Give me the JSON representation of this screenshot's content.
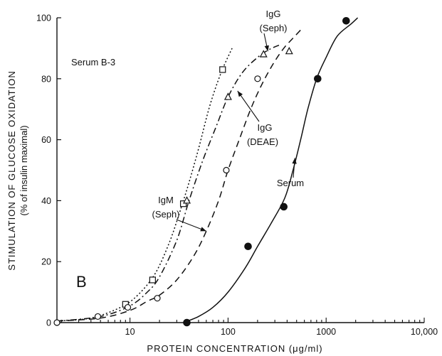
{
  "chart_data": {
    "type": "scatter",
    "title": "",
    "xlabel": "PROTEIN CONCENTRATION (μg/ml)",
    "ylabel": "STIMULATION OF GLUCOSE OXIDATION",
    "ylabel_sub": "(% of insulin maximal)",
    "x_scale": "log",
    "xlim": [
      1.8,
      10000
    ],
    "ylim": [
      0,
      100
    ],
    "x_ticks": [
      10,
      100,
      1000,
      10000
    ],
    "x_tick_labels": [
      "10",
      "100",
      "1000",
      "10,000"
    ],
    "y_ticks": [
      0,
      20,
      40,
      60,
      80,
      100
    ],
    "y_tick_labels": [
      "0",
      "20",
      "40",
      "60",
      "80",
      "100"
    ],
    "panel_label": "B",
    "inset_label": "Serum B-3",
    "series": [
      {
        "name": "IgM (Seph)",
        "marker": "square",
        "line_style": "dotted",
        "points": [
          [
            9,
            6
          ],
          [
            17,
            14
          ],
          [
            35,
            39
          ],
          [
            88,
            83
          ]
        ],
        "curve": [
          [
            1.8,
            0.5
          ],
          [
            4,
            1.5
          ],
          [
            8,
            5
          ],
          [
            12,
            9
          ],
          [
            18,
            16
          ],
          [
            25,
            26
          ],
          [
            32,
            36
          ],
          [
            40,
            46
          ],
          [
            50,
            57
          ],
          [
            65,
            71
          ],
          [
            85,
            82
          ],
          [
            110,
            90
          ]
        ]
      },
      {
        "name": "IgG (Seph)",
        "marker": "triangle",
        "line_style": "dash-dot",
        "points": [
          [
            38,
            40
          ],
          [
            100,
            74
          ],
          [
            230,
            88
          ],
          [
            420,
            89
          ]
        ],
        "curve": [
          [
            1.8,
            0.5
          ],
          [
            5,
            2
          ],
          [
            10,
            5.5
          ],
          [
            15,
            10
          ],
          [
            20,
            15
          ],
          [
            30,
            27
          ],
          [
            40,
            40
          ],
          [
            55,
            53
          ],
          [
            75,
            64
          ],
          [
            100,
            74
          ],
          [
            140,
            82
          ],
          [
            200,
            87
          ],
          [
            260,
            89.5
          ],
          [
            330,
            91
          ]
        ]
      },
      {
        "name": "IgG (DEAE)",
        "marker": "circle-open",
        "line_style": "dashed",
        "points": [
          [
            1.8,
            0
          ],
          [
            4.7,
            2
          ],
          [
            9.5,
            5
          ],
          [
            19,
            8
          ],
          [
            96,
            50
          ],
          [
            200,
            80
          ]
        ],
        "curve": [
          [
            1.8,
            0.5
          ],
          [
            5,
            1.5
          ],
          [
            10,
            4
          ],
          [
            15,
            7
          ],
          [
            20,
            9
          ],
          [
            30,
            14
          ],
          [
            45,
            22
          ],
          [
            60,
            30
          ],
          [
            80,
            40
          ],
          [
            100,
            50
          ],
          [
            130,
            60
          ],
          [
            170,
            70
          ],
          [
            220,
            78
          ],
          [
            290,
            85
          ],
          [
            370,
            90
          ],
          [
            450,
            93
          ],
          [
            550,
            96
          ]
        ]
      },
      {
        "name": "Serum",
        "marker": "circle-filled",
        "line_style": "solid",
        "points": [
          [
            38,
            0
          ],
          [
            160,
            25
          ],
          [
            370,
            38
          ],
          [
            820,
            80
          ],
          [
            1600,
            99
          ]
        ],
        "curve": [
          [
            35,
            0
          ],
          [
            50,
            2
          ],
          [
            70,
            5
          ],
          [
            100,
            10
          ],
          [
            150,
            18
          ],
          [
            200,
            25
          ],
          [
            280,
            33
          ],
          [
            380,
            41
          ],
          [
            460,
            50
          ],
          [
            550,
            60
          ],
          [
            650,
            70
          ],
          [
            800,
            80
          ],
          [
            1000,
            87
          ],
          [
            1300,
            94
          ],
          [
            1800,
            98
          ],
          [
            2100,
            100
          ]
        ]
      }
    ],
    "annotations": [
      {
        "text": "IgG",
        "text2": "(Seph)",
        "points_to": [
          255,
          89
        ]
      },
      {
        "text": "IgG",
        "text2": "(DEAE)",
        "points_to": [
          125,
          76
        ]
      },
      {
        "text": "IgM",
        "text2": "(Seph)",
        "points_to": [
          60,
          30
        ]
      },
      {
        "text": "Serum",
        "points_to": [
          480,
          54
        ]
      }
    ]
  }
}
